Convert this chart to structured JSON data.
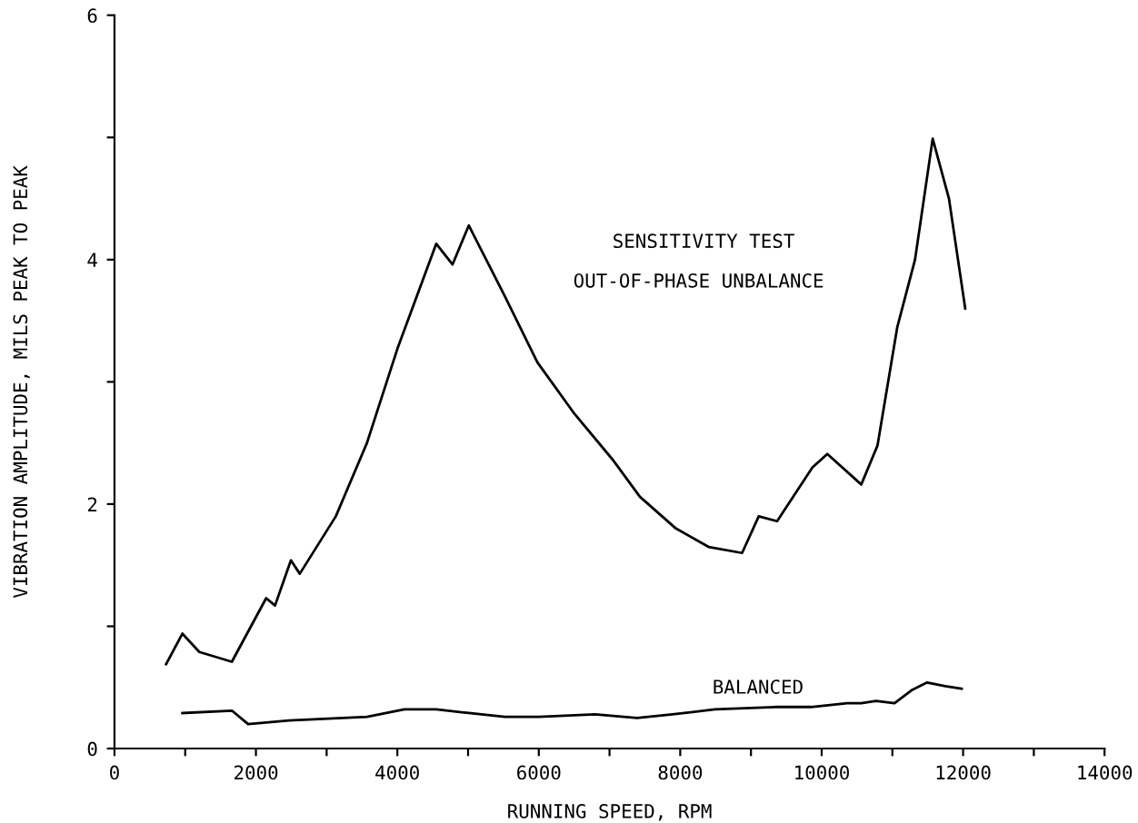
{
  "chart_data": {
    "type": "line",
    "title": "SENSITIVITY TEST",
    "subtitle": "OUT-OF-PHASE UNBALANCE",
    "xlabel": "RUNNING SPEED, RPM",
    "ylabel": "VIBRATION AMPLITUDE, MILS PEAK TO PEAK",
    "xlim": [
      0,
      14000
    ],
    "ylim": [
      0,
      6
    ],
    "xticks": [
      0,
      {
        "value": 1000,
        "label": null
      },
      2000,
      {
        "value": 3000,
        "label": null
      },
      4000,
      {
        "value": 5000,
        "label": null
      },
      6000,
      {
        "value": 7000,
        "label": null
      },
      8000,
      {
        "value": 9000,
        "label": null
      },
      10000,
      {
        "value": 11000,
        "label": null
      },
      12000,
      {
        "value": 13000,
        "label": null
      },
      14000
    ],
    "yticks": [
      0,
      {
        "value": 1,
        "label": null
      },
      2,
      {
        "value": 3,
        "label": null
      },
      4,
      {
        "value": 5,
        "label": null
      },
      6
    ],
    "grid": false,
    "marker": "none",
    "line_style": "solid",
    "series": [
      {
        "color": "#000000",
        "x": [
          730,
          960,
          1200,
          1660,
          2145,
          2270,
          2495,
          2620,
          3130,
          3570,
          4000,
          4550,
          4780,
          5010,
          5520,
          5980,
          6490,
          7050,
          7430,
          7940,
          8400,
          8875,
          9110,
          9370,
          9870,
          10080,
          10560,
          10790,
          11070,
          11320,
          11570,
          11800,
          12030
        ],
        "values": [
          0.69,
          0.94,
          0.79,
          0.71,
          1.23,
          1.17,
          1.54,
          1.43,
          1.9,
          2.5,
          3.27,
          4.13,
          3.96,
          4.28,
          3.7,
          3.16,
          2.75,
          2.36,
          2.06,
          1.8,
          1.65,
          1.6,
          1.9,
          1.86,
          2.3,
          2.41,
          2.16,
          2.48,
          3.45,
          4.0,
          4.99,
          4.5,
          3.6
        ]
      },
      {
        "name": "BALANCED",
        "color": "#000000",
        "x": [
          960,
          1660,
          1890,
          2470,
          3570,
          4100,
          4550,
          5010,
          5520,
          6000,
          6795,
          7390,
          7890,
          8490,
          9340,
          9850,
          10360,
          10560,
          10770,
          11030,
          11280,
          11490,
          11750,
          11980
        ],
        "values": [
          0.29,
          0.31,
          0.2,
          0.23,
          0.26,
          0.32,
          0.32,
          0.29,
          0.26,
          0.26,
          0.28,
          0.25,
          0.28,
          0.32,
          0.34,
          0.34,
          0.37,
          0.37,
          0.39,
          0.37,
          0.48,
          0.54,
          0.51,
          0.49
        ]
      }
    ]
  }
}
